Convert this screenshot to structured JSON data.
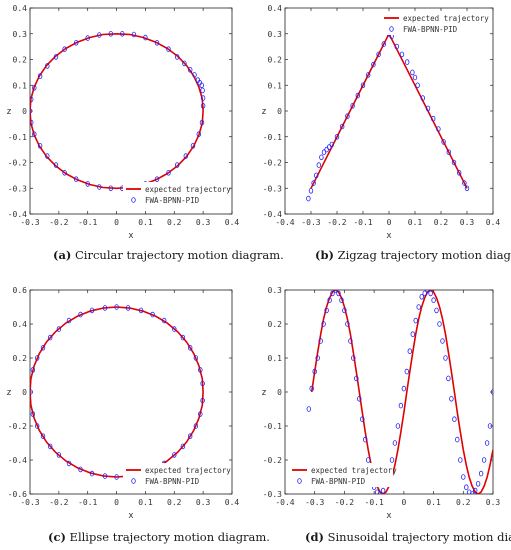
{
  "colors": {
    "expected": "#e00000",
    "fwa": "#2020ff"
  },
  "chart_data": [
    {
      "type": "line",
      "xlabel": "x",
      "ylabel": "z",
      "xlim": [
        -0.3,
        0.4
      ],
      "ylim": [
        -0.4,
        0.4
      ],
      "xticks": [
        "-0.3",
        "-0.2",
        "-0.1",
        "0",
        "0.1",
        "0.2",
        "0.3",
        "0.4"
      ],
      "yticks": [
        "-0.4",
        "-0.3",
        "-0.2",
        "-0.1",
        "0",
        "0.1",
        "0.2",
        "0.3",
        "0.4"
      ],
      "legend": {
        "placement": "bottom-right",
        "entries": [
          "expected trajectory",
          "FWA-BPNN-PID"
        ]
      },
      "caption": {
        "label": "(a)",
        "text": " Circular trajectory motion diagram."
      },
      "series": [
        {
          "name": "expected trajectory",
          "style": "line",
          "x": [
            0.3,
            0.297,
            0.2853,
            0.2673,
            0.2427,
            0.2121,
            0.1763,
            0.1362,
            0.0927,
            0.0469,
            0.0,
            -0.0469,
            -0.0927,
            -0.1362,
            -0.1763,
            -0.2121,
            -0.2427,
            -0.2673,
            -0.2853,
            -0.297,
            -0.3,
            -0.297,
            -0.2853,
            -0.2673,
            -0.2427,
            -0.2121,
            -0.1763,
            -0.1362,
            -0.0927,
            -0.0469,
            0.0,
            0.0469,
            0.0927,
            0.1362,
            0.1763,
            0.2121,
            0.2427,
            0.2673,
            0.2853,
            0.297,
            0.3
          ],
          "y": [
            0.0,
            0.0469,
            0.0927,
            0.1362,
            0.1763,
            0.2121,
            0.2427,
            0.2673,
            0.2853,
            0.297,
            0.3,
            0.297,
            0.2853,
            0.2673,
            0.2427,
            0.2121,
            0.1763,
            0.1362,
            0.0927,
            0.0469,
            0.0,
            -0.0469,
            -0.0927,
            -0.1362,
            -0.1763,
            -0.2121,
            -0.2427,
            -0.2673,
            -0.2853,
            -0.297,
            -0.3,
            -0.297,
            -0.2853,
            -0.2673,
            -0.2427,
            -0.2121,
            -0.1763,
            -0.1362,
            -0.0927,
            -0.0469,
            0.0
          ]
        },
        {
          "name": "FWA-BPNN-PID",
          "style": "markers",
          "x": [
            0.3,
            0.3,
            0.298,
            0.295,
            0.288,
            0.282,
            0.27,
            0.255,
            0.235,
            0.21,
            0.18,
            0.14,
            0.1,
            0.06,
            0.02,
            -0.02,
            -0.06,
            -0.1,
            -0.14,
            -0.18,
            -0.21,
            -0.24,
            -0.265,
            -0.285,
            -0.296,
            -0.3,
            -0.296,
            -0.285,
            -0.265,
            -0.24,
            -0.21,
            -0.18,
            -0.14,
            -0.1,
            -0.06,
            -0.02,
            0.02,
            0.06,
            0.1,
            0.14,
            0.18,
            0.21,
            0.24,
            0.265,
            0.285,
            0.296
          ],
          "y": [
            0.02,
            0.05,
            0.08,
            0.1,
            0.11,
            0.12,
            0.14,
            0.16,
            0.185,
            0.21,
            0.24,
            0.265,
            0.285,
            0.297,
            0.3,
            0.3,
            0.295,
            0.283,
            0.265,
            0.24,
            0.21,
            0.175,
            0.135,
            0.09,
            0.045,
            0.0,
            -0.045,
            -0.09,
            -0.135,
            -0.175,
            -0.21,
            -0.24,
            -0.265,
            -0.283,
            -0.295,
            -0.3,
            -0.3,
            -0.295,
            -0.283,
            -0.265,
            -0.24,
            -0.21,
            -0.175,
            -0.135,
            -0.09,
            -0.045
          ]
        }
      ]
    },
    {
      "type": "line",
      "xlabel": "x",
      "ylabel": "z",
      "xlim": [
        -0.4,
        0.4
      ],
      "ylim": [
        -0.4,
        0.4
      ],
      "xticks": [
        "-0.4",
        "-0.3",
        "-0.2",
        "-0.1",
        "0",
        "0.1",
        "0.2",
        "0.3",
        "0.4"
      ],
      "yticks": [
        "-0.4",
        "-0.3",
        "-0.2",
        "-0.1",
        "0",
        "0.1",
        "0.2",
        "0.3",
        "0.4"
      ],
      "legend": {
        "placement": "top-right",
        "entries": [
          "expected trajectory",
          "FWA-BPNN-PID"
        ]
      },
      "caption": {
        "label": "(b)",
        "text": " Zigzag trajectory motion diagram."
      },
      "series": [
        {
          "name": "expected trajectory",
          "style": "line",
          "x": [
            -0.3,
            0.0,
            0.3
          ],
          "y": [
            -0.3,
            0.3,
            -0.3
          ]
        },
        {
          "name": "FWA-BPNN-PID",
          "style": "markers",
          "x": [
            -0.31,
            -0.3,
            -0.29,
            -0.28,
            -0.27,
            -0.26,
            -0.25,
            -0.24,
            -0.23,
            -0.22,
            -0.2,
            -0.18,
            -0.16,
            -0.14,
            -0.12,
            -0.1,
            -0.08,
            -0.06,
            -0.04,
            -0.02,
            0.0,
            0.01,
            0.03,
            0.05,
            0.07,
            0.09,
            0.1,
            0.11,
            0.13,
            0.15,
            0.17,
            0.19,
            0.21,
            0.23,
            0.25,
            0.27,
            0.29,
            0.3
          ],
          "y": [
            -0.34,
            -0.31,
            -0.28,
            -0.25,
            -0.21,
            -0.18,
            -0.16,
            -0.15,
            -0.14,
            -0.13,
            -0.1,
            -0.06,
            -0.02,
            0.02,
            0.06,
            0.1,
            0.14,
            0.18,
            0.22,
            0.26,
            0.3,
            0.29,
            0.25,
            0.22,
            0.19,
            0.15,
            0.13,
            0.1,
            0.05,
            0.01,
            -0.03,
            -0.07,
            -0.12,
            -0.16,
            -0.2,
            -0.24,
            -0.28,
            -0.3
          ]
        }
      ]
    },
    {
      "type": "line",
      "xlabel": "x",
      "ylabel": "z",
      "xlim": [
        -0.3,
        0.4
      ],
      "ylim": [
        -0.6,
        0.6
      ],
      "xticks": [
        "-0.3",
        "-0.2",
        "-0.1",
        "0",
        "0.1",
        "0.2",
        "0.3",
        "0.4"
      ],
      "yticks": [
        "-0.6",
        "-0.4",
        "-0.2",
        "0",
        "0.2",
        "0.4",
        "0.6"
      ],
      "legend": {
        "placement": "bottom-right",
        "entries": [
          "expected trajectory",
          "FWA-BPNN-PID"
        ]
      },
      "caption": {
        "label": "(c)",
        "text": " Ellipse trajectory motion diagram."
      },
      "series": [
        {
          "name": "expected trajectory",
          "style": "line",
          "x": [
            0.3,
            0.297,
            0.2853,
            0.2673,
            0.2427,
            0.2121,
            0.1763,
            0.1362,
            0.0927,
            0.0469,
            0.0,
            -0.0469,
            -0.0927,
            -0.1362,
            -0.1763,
            -0.2121,
            -0.2427,
            -0.2673,
            -0.2853,
            -0.297,
            -0.3,
            -0.297,
            -0.2853,
            -0.2673,
            -0.2427,
            -0.2121,
            -0.1763,
            -0.1362,
            -0.0927,
            -0.0469,
            0.0,
            0.0469,
            0.0927,
            0.1362,
            0.1763,
            0.2121,
            0.2427,
            0.2673,
            0.2853,
            0.297,
            0.3
          ],
          "y": [
            0.0,
            0.0782,
            0.1545,
            0.227,
            0.2939,
            0.3536,
            0.4045,
            0.4455,
            0.4755,
            0.4938,
            0.5,
            0.4938,
            0.4755,
            0.4455,
            0.4045,
            0.3536,
            0.2939,
            0.227,
            0.1545,
            0.0782,
            0.0,
            -0.0782,
            -0.1545,
            -0.227,
            -0.2939,
            -0.3536,
            -0.4045,
            -0.4455,
            -0.4755,
            -0.4938,
            -0.5,
            -0.4938,
            -0.4755,
            -0.4455,
            -0.4045,
            -0.3536,
            -0.2939,
            -0.227,
            -0.1545,
            -0.0782,
            0.0
          ]
        },
        {
          "name": "FWA-BPNN-PID",
          "style": "markers",
          "x": [
            0.298,
            0.29,
            0.275,
            0.255,
            0.23,
            0.2,
            0.165,
            0.125,
            0.085,
            0.04,
            0.0,
            -0.04,
            -0.085,
            -0.125,
            -0.165,
            -0.2,
            -0.23,
            -0.255,
            -0.275,
            -0.29,
            -0.298,
            -0.29,
            -0.275,
            -0.255,
            -0.23,
            -0.2,
            -0.165,
            -0.125,
            -0.085,
            -0.04,
            0.0,
            0.04,
            0.085,
            0.125,
            0.165,
            0.2,
            0.23,
            0.255,
            0.275,
            0.29,
            0.298
          ],
          "y": [
            0.05,
            0.13,
            0.2,
            0.26,
            0.32,
            0.37,
            0.42,
            0.455,
            0.48,
            0.495,
            0.5,
            0.495,
            0.48,
            0.455,
            0.42,
            0.37,
            0.32,
            0.26,
            0.2,
            0.13,
            0.0,
            -0.13,
            -0.2,
            -0.26,
            -0.32,
            -0.37,
            -0.42,
            -0.455,
            -0.48,
            -0.495,
            -0.5,
            -0.495,
            -0.48,
            -0.455,
            -0.42,
            -0.37,
            -0.32,
            -0.26,
            -0.2,
            -0.13,
            -0.05
          ]
        }
      ]
    },
    {
      "type": "line",
      "xlabel": "x",
      "ylabel": "z",
      "xlim": [
        -0.4,
        0.3
      ],
      "ylim": [
        -0.3,
        0.3
      ],
      "xticks": [
        "-0.4",
        "-0.3",
        "-0.2",
        "-0.1",
        "0",
        "0.1",
        "0.2",
        "0.3"
      ],
      "yticks": [
        "-0.3",
        "-0.2",
        "-0.1",
        "0",
        "0.1",
        "0.2",
        "0.3"
      ],
      "legend": {
        "placement": "bottom-left",
        "entries": [
          "expected trajectory",
          "FWA-BPNN-PID"
        ]
      },
      "caption": {
        "label": "(d)",
        "text": " Sinusoidal trajectory motion diagram."
      },
      "series": [
        {
          "name": "expected trajectory",
          "style": "line",
          "x": [
            -0.31,
            -0.3,
            -0.29,
            -0.28,
            -0.27,
            -0.26,
            -0.25,
            -0.24,
            -0.23,
            -0.22,
            -0.21,
            -0.2,
            -0.19,
            -0.18,
            -0.17,
            -0.16,
            -0.15,
            -0.14,
            -0.13,
            -0.12,
            -0.11,
            -0.1,
            -0.09,
            -0.08,
            -0.07,
            -0.06,
            -0.05,
            -0.04,
            -0.03,
            -0.02,
            -0.01,
            0.0,
            0.01,
            0.02,
            0.03,
            0.04,
            0.05,
            0.06,
            0.07,
            0.08,
            0.09,
            0.1,
            0.11,
            0.12,
            0.13,
            0.14,
            0.15,
            0.16,
            0.17,
            0.18,
            0.19,
            0.2,
            0.21,
            0.22,
            0.23,
            0.24,
            0.25,
            0.26,
            0.27,
            0.28,
            0.29,
            0.3
          ],
          "y": [
            0.0,
            0.06,
            0.117,
            0.17,
            0.215,
            0.251,
            0.277,
            0.294,
            0.3,
            0.294,
            0.277,
            0.251,
            0.215,
            0.17,
            0.117,
            0.06,
            0.0,
            -0.06,
            -0.117,
            -0.17,
            -0.215,
            -0.251,
            -0.277,
            -0.294,
            -0.3,
            -0.294,
            -0.277,
            -0.251,
            -0.215,
            -0.17,
            -0.117,
            -0.06,
            0.0,
            0.06,
            0.117,
            0.17,
            0.215,
            0.251,
            0.277,
            0.294,
            0.3,
            0.294,
            0.277,
            0.251,
            0.215,
            0.17,
            0.117,
            0.06,
            0.0,
            -0.06,
            -0.117,
            -0.17,
            -0.215,
            -0.251,
            -0.277,
            -0.294,
            -0.3,
            -0.294,
            -0.277,
            -0.251,
            -0.215,
            -0.17
          ]
        },
        {
          "name": "FWA-BPNN-PID",
          "style": "markers",
          "x": [
            -0.32,
            -0.31,
            -0.3,
            -0.29,
            -0.28,
            -0.27,
            -0.26,
            -0.25,
            -0.24,
            -0.23,
            -0.22,
            -0.21,
            -0.2,
            -0.19,
            -0.18,
            -0.17,
            -0.16,
            -0.15,
            -0.14,
            -0.13,
            -0.12,
            -0.11,
            -0.1,
            -0.09,
            -0.08,
            -0.07,
            -0.06,
            -0.05,
            -0.04,
            -0.03,
            -0.02,
            -0.01,
            0.0,
            0.01,
            0.02,
            0.03,
            0.04,
            0.05,
            0.06,
            0.07,
            0.08,
            0.09,
            0.1,
            0.11,
            0.12,
            0.13,
            0.14,
            0.15,
            0.16,
            0.17,
            0.18,
            0.19,
            0.2,
            0.21,
            0.22,
            0.23,
            0.24,
            0.25,
            0.26,
            0.27,
            0.28,
            0.29,
            0.3
          ],
          "y": [
            -0.05,
            0.01,
            0.06,
            0.1,
            0.15,
            0.2,
            0.24,
            0.27,
            0.29,
            0.3,
            0.29,
            0.27,
            0.24,
            0.2,
            0.15,
            0.1,
            0.04,
            -0.02,
            -0.08,
            -0.14,
            -0.2,
            -0.25,
            -0.28,
            -0.295,
            -0.3,
            -0.29,
            -0.27,
            -0.24,
            -0.2,
            -0.15,
            -0.1,
            -0.04,
            0.01,
            0.06,
            0.12,
            0.17,
            0.21,
            0.25,
            0.28,
            0.29,
            0.3,
            0.29,
            0.27,
            0.24,
            0.2,
            0.15,
            0.1,
            0.04,
            -0.02,
            -0.08,
            -0.14,
            -0.2,
            -0.25,
            -0.28,
            -0.295,
            -0.3,
            -0.29,
            -0.27,
            -0.24,
            -0.2,
            -0.15,
            -0.1,
            0.0
          ]
        }
      ]
    }
  ]
}
